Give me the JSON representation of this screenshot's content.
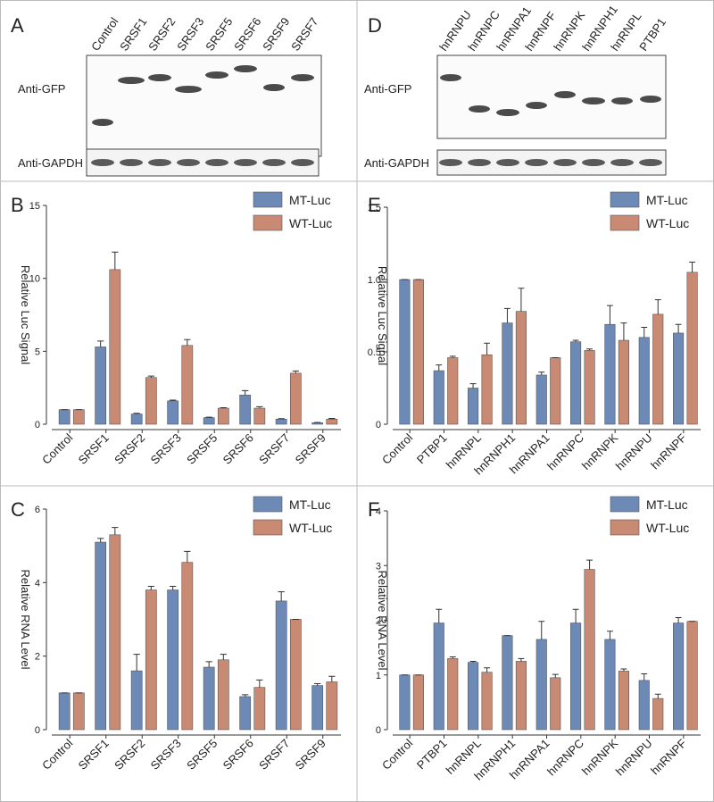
{
  "blots": [
    {
      "panel": "A",
      "lanes": [
        "Control",
        "SRSF1",
        "SRSF2",
        "SRSF3",
        "SRSF5",
        "SRSF6",
        "SRSF9",
        "SRSF7"
      ],
      "rows": [
        "Anti-GFP",
        "Anti-GAPDH"
      ]
    },
    {
      "panel": "D",
      "lanes": [
        "hnRNPU",
        "hnRNPC",
        "hnRNPA1",
        "hnRNPF",
        "hnRNPK",
        "hnRNPH1",
        "hnRNPL",
        "PTBP1"
      ],
      "rows": [
        "Anti-GFP",
        "Anti-GAPDH"
      ]
    }
  ],
  "chart_data": [
    {
      "type": "bar",
      "panel": "B",
      "y_label": "Relative Luc Signal",
      "categories": [
        "Control",
        "SRSF1",
        "SRSF2",
        "SRSF3",
        "SRSF5",
        "SRSF6",
        "SRSF7",
        "SRSF9"
      ],
      "series": [
        {
          "name": "MT-Luc",
          "color": "#6d89b6",
          "values": [
            1.0,
            5.3,
            0.7,
            1.6,
            0.45,
            2.0,
            0.35,
            0.1
          ],
          "errors": [
            0,
            0.4,
            0.05,
            0.05,
            0.03,
            0.3,
            0.03,
            0.02
          ]
        },
        {
          "name": "WT-Luc",
          "color": "#c98a74",
          "values": [
            1.0,
            10.6,
            3.2,
            5.4,
            1.1,
            1.1,
            3.5,
            0.35
          ],
          "errors": [
            0,
            1.2,
            0.1,
            0.4,
            0.03,
            0.1,
            0.15,
            0.05
          ]
        }
      ],
      "ylim": [
        0,
        15
      ],
      "yticks": [
        0,
        5,
        10,
        15
      ],
      "legend": "upper right"
    },
    {
      "type": "bar",
      "panel": "C",
      "y_label": "Relative RNA Level",
      "categories": [
        "Control",
        "SRSF1",
        "SRSF2",
        "SRSF3",
        "SRSF5",
        "SRSF6",
        "SRSF7",
        "SRSF9"
      ],
      "series": [
        {
          "name": "MT-Luc",
          "color": "#6d89b6",
          "values": [
            1.0,
            5.1,
            1.6,
            3.8,
            1.7,
            0.9,
            3.5,
            1.2
          ],
          "errors": [
            0,
            0.1,
            0.45,
            0.1,
            0.15,
            0.05,
            0.25,
            0.05
          ]
        },
        {
          "name": "WT-Luc",
          "color": "#c98a74",
          "values": [
            1.0,
            5.3,
            3.8,
            4.55,
            1.9,
            1.15,
            3.0,
            1.3
          ],
          "errors": [
            0,
            0.2,
            0.1,
            0.3,
            0.15,
            0.2,
            0,
            0.15
          ]
        }
      ],
      "ylim": [
        0,
        6
      ],
      "yticks": [
        0,
        2,
        4,
        6
      ],
      "legend": "upper right"
    },
    {
      "type": "bar",
      "panel": "E",
      "y_label": "Relative Luc Signal",
      "categories": [
        "Control",
        "PTBP1",
        "hnRNPL",
        "hnRNPH1",
        "hnRNPA1",
        "hnRNPC",
        "hnRNPK",
        "hnRNPU",
        "hnRNPF"
      ],
      "series": [
        {
          "name": "MT-Luc",
          "color": "#6d89b6",
          "values": [
            1.0,
            0.37,
            0.25,
            0.7,
            0.34,
            0.57,
            0.69,
            0.6,
            0.63
          ],
          "errors": [
            0,
            0.04,
            0.03,
            0.1,
            0.02,
            0.01,
            0.13,
            0.07,
            0.06
          ]
        },
        {
          "name": "WT-Luc",
          "color": "#c98a74",
          "values": [
            1.0,
            0.46,
            0.48,
            0.78,
            0.46,
            0.51,
            0.58,
            0.76,
            1.05
          ],
          "errors": [
            0,
            0.01,
            0.08,
            0.16,
            0,
            0.01,
            0.12,
            0.1,
            0.07
          ]
        }
      ],
      "ylim": [
        0,
        1.5
      ],
      "yticks": [
        0,
        0.5,
        {
          "value": 1,
          "label": "1.0"
        },
        1.5
      ],
      "legend": "upper right"
    },
    {
      "type": "bar",
      "panel": "F",
      "y_label": "Relative RNA Level",
      "categories": [
        "Control",
        "PTBP1",
        "hnRNPL",
        "hnRNPH1",
        "hnRNPA1",
        "hnRNPC",
        "hnRNPK",
        "hnRNPU",
        "hnRNPF"
      ],
      "series": [
        {
          "name": "MT-Luc",
          "color": "#6d89b6",
          "values": [
            1.0,
            1.95,
            1.23,
            1.72,
            1.65,
            1.95,
            1.65,
            0.9,
            1.95
          ],
          "errors": [
            0,
            0.25,
            0.02,
            0,
            0.33,
            0.25,
            0.15,
            0.12,
            0.1
          ]
        },
        {
          "name": "WT-Luc",
          "color": "#c98a74",
          "values": [
            1.0,
            1.3,
            1.05,
            1.25,
            0.95,
            2.93,
            1.07,
            0.57,
            1.98
          ],
          "errors": [
            0,
            0.03,
            0.08,
            0.05,
            0.06,
            0.17,
            0.04,
            0.08,
            0
          ]
        }
      ],
      "ylim": [
        0,
        4
      ],
      "yticks": [
        0,
        1,
        2,
        3,
        4
      ],
      "legend": "upper right"
    }
  ]
}
